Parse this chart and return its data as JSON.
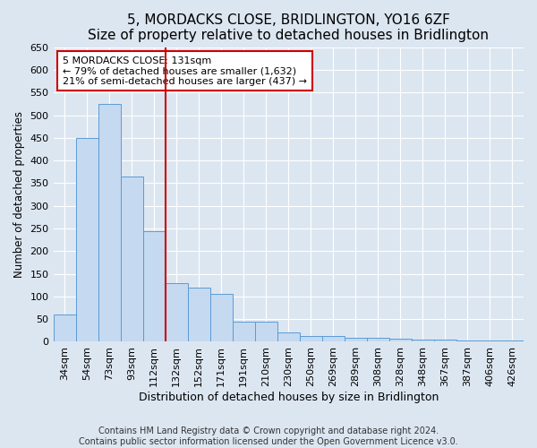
{
  "title": "5, MORDACKS CLOSE, BRIDLINGTON, YO16 6ZF",
  "subtitle": "Size of property relative to detached houses in Bridlington",
  "xlabel": "Distribution of detached houses by size in Bridlington",
  "ylabel": "Number of detached properties",
  "categories": [
    "34sqm",
    "54sqm",
    "73sqm",
    "93sqm",
    "112sqm",
    "132sqm",
    "152sqm",
    "171sqm",
    "191sqm",
    "210sqm",
    "230sqm",
    "250sqm",
    "269sqm",
    "289sqm",
    "308sqm",
    "328sqm",
    "348sqm",
    "367sqm",
    "387sqm",
    "406sqm",
    "426sqm"
  ],
  "values": [
    60,
    450,
    525,
    365,
    245,
    130,
    120,
    105,
    45,
    45,
    20,
    12,
    12,
    8,
    8,
    6,
    5,
    4,
    3,
    3,
    2
  ],
  "bar_color": "#c5d9f0",
  "bar_edge_color": "#5b9bd5",
  "ref_line_color": "#cc0000",
  "ref_line_x": 5.0,
  "annotation_text": "5 MORDACKS CLOSE: 131sqm\n← 79% of detached houses are smaller (1,632)\n21% of semi-detached houses are larger (437) →",
  "annotation_box_facecolor": "#ffffff",
  "annotation_box_edgecolor": "#cc0000",
  "ylim": [
    0,
    650
  ],
  "yticks": [
    0,
    50,
    100,
    150,
    200,
    250,
    300,
    350,
    400,
    450,
    500,
    550,
    600,
    650
  ],
  "background_color": "#dce6f1",
  "grid_color": "#ffffff",
  "footer_text": "Contains HM Land Registry data © Crown copyright and database right 2024.\nContains public sector information licensed under the Open Government Licence v3.0.",
  "title_fontsize": 11,
  "subtitle_fontsize": 9.5,
  "xlabel_fontsize": 9,
  "ylabel_fontsize": 8.5,
  "tick_fontsize": 8,
  "annotation_fontsize": 8,
  "footer_fontsize": 7
}
